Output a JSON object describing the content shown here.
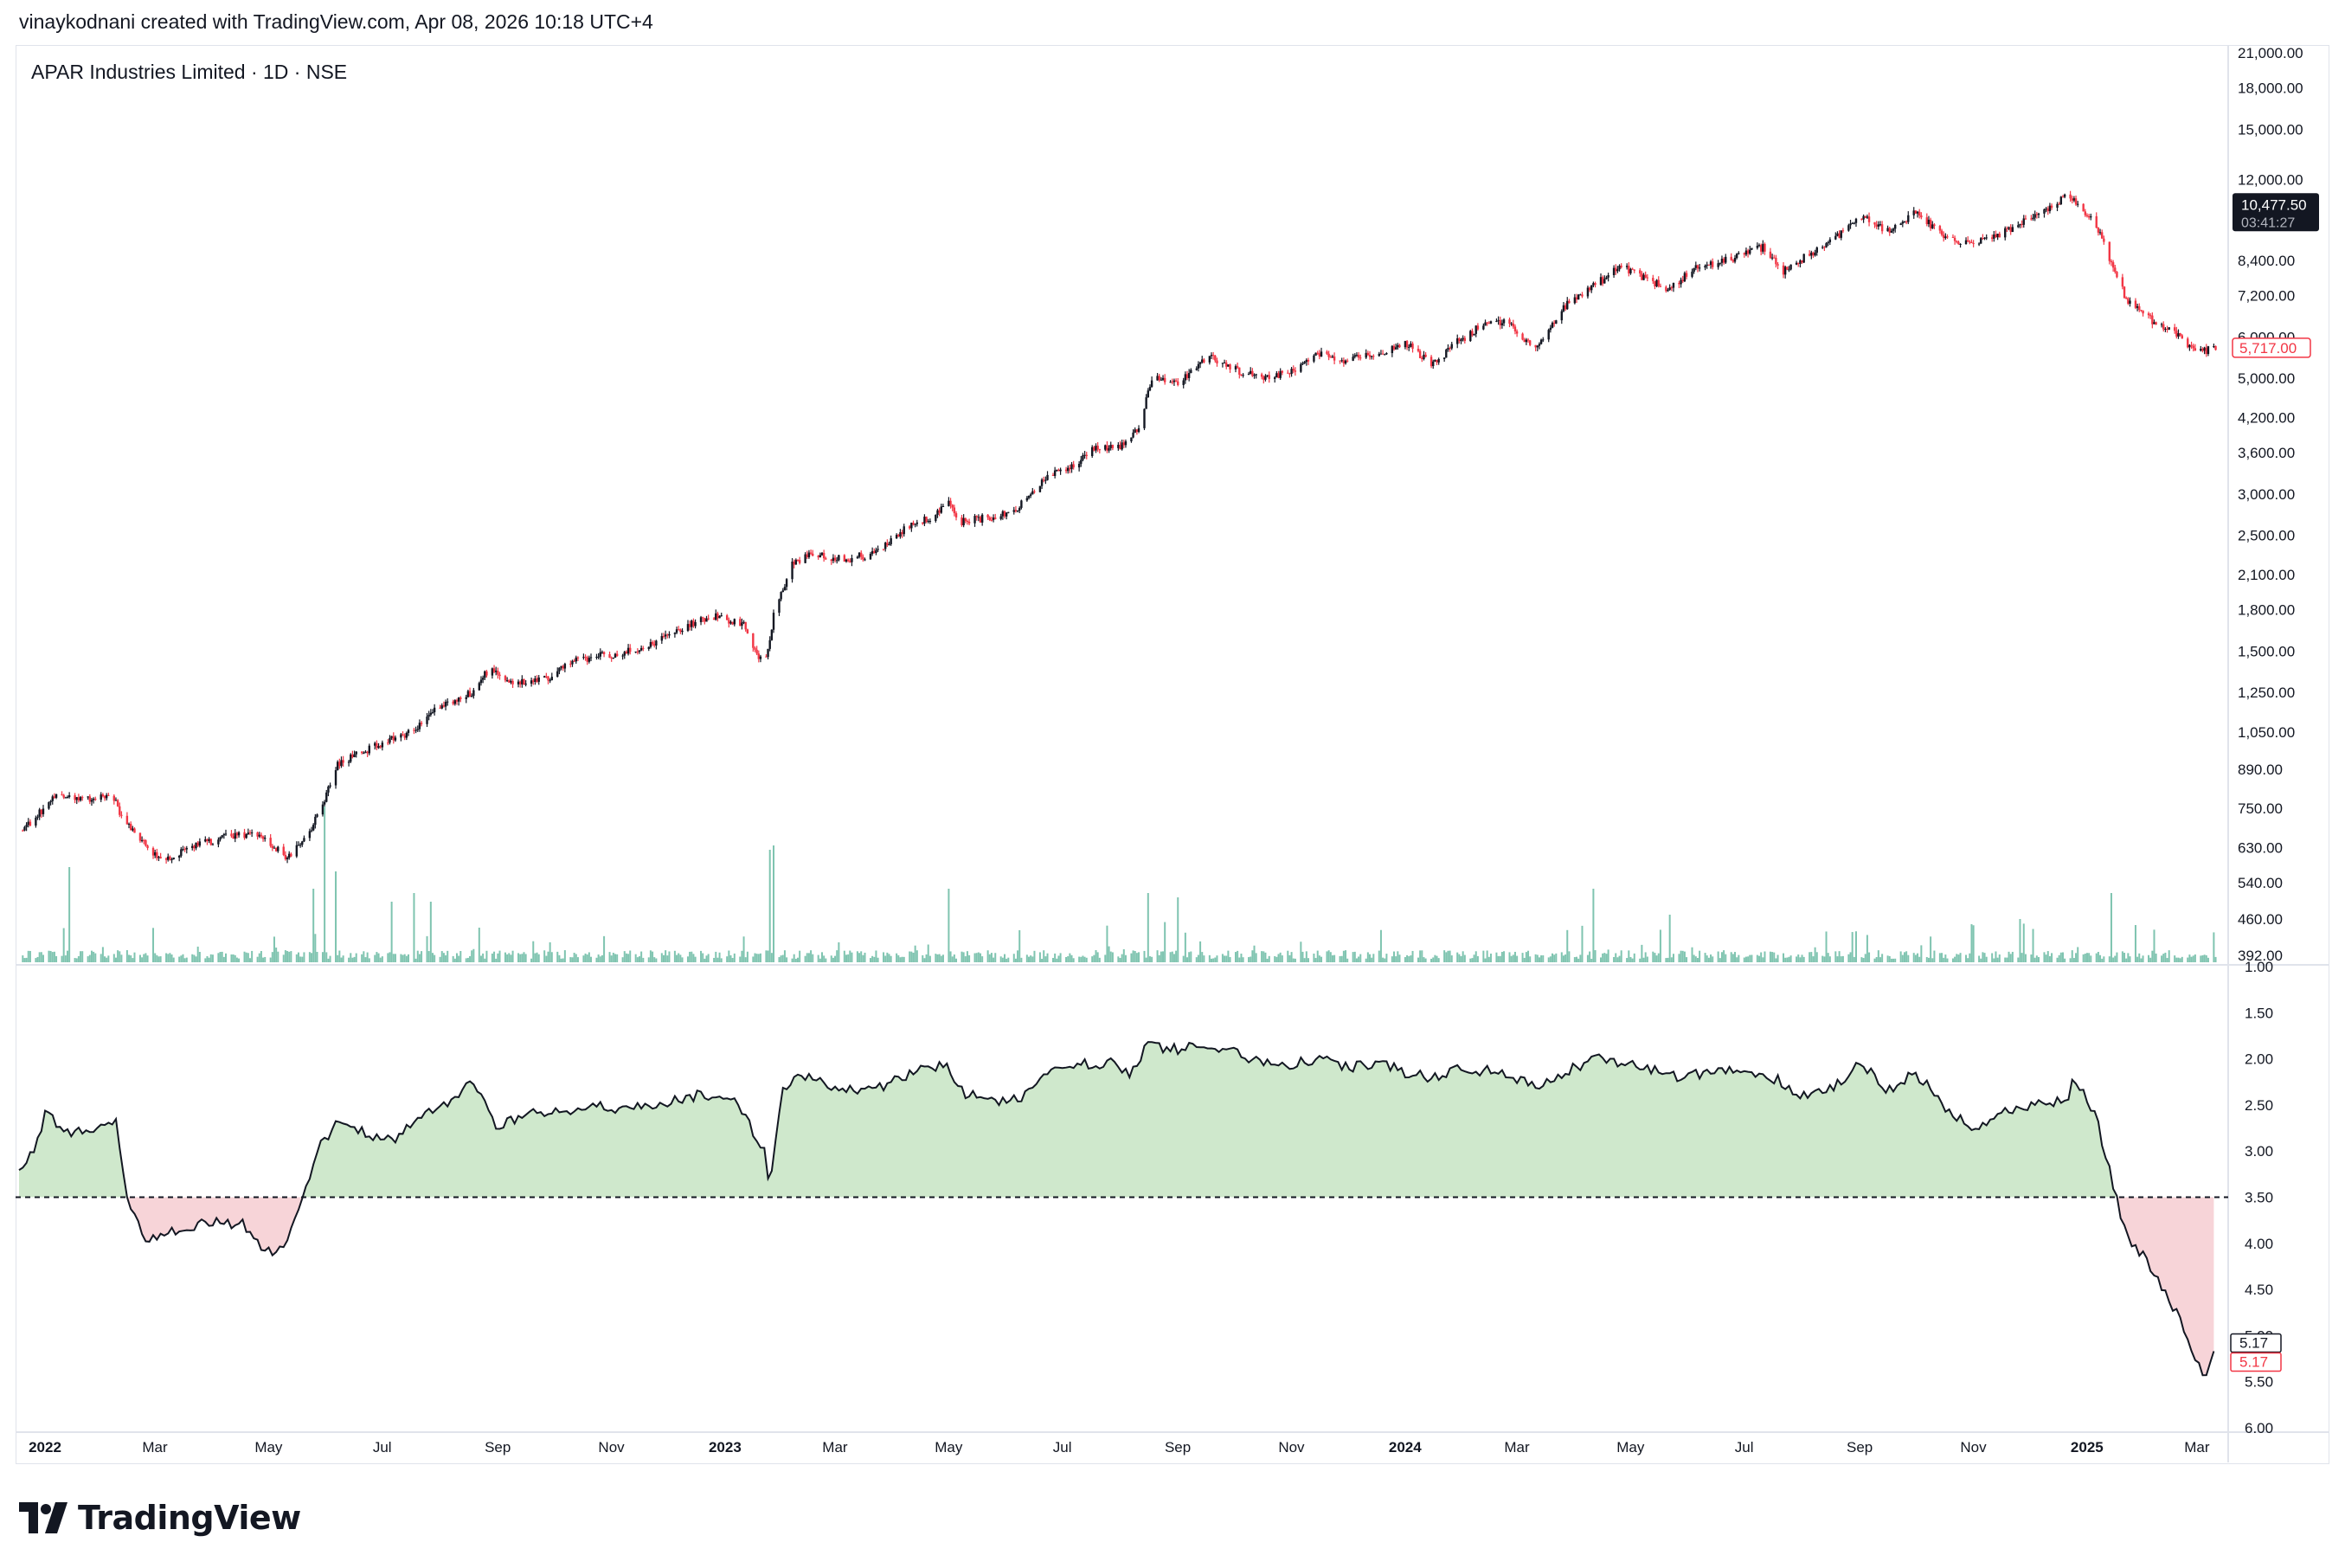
{
  "header": {
    "text": "vinaykodnani created with TradingView.com, Apr 08, 2026 10:18 UTC+4"
  },
  "symbol": {
    "title": "APAR Industries Limited · 1D · NSE"
  },
  "logo": {
    "text": "TradingView"
  },
  "colors": {
    "up": "#131722",
    "down": "#f23645",
    "volume": "#7fc4b0",
    "green_fill": "#cfe8cc",
    "red_fill": "#f7d4d8",
    "line": "#131722",
    "grid": "#e0e3eb"
  },
  "icons": {
    "logo": "tradingview-logo-icon"
  },
  "chart_data": [
    {
      "type": "candlestick",
      "title": "APAR Industries Limited · 1D · NSE",
      "y_scale": "log",
      "ylim": [
        380,
        21500
      ],
      "y_ticks": [
        21000,
        18000,
        15000,
        12000,
        8400,
        7200,
        6000,
        5000,
        4200,
        3600,
        3000,
        2500,
        2100,
        1800,
        1500,
        1250,
        1050,
        890,
        750,
        630,
        540,
        460,
        392
      ],
      "y_tick_labels": [
        "21,000.00",
        "18,000.00",
        "15,000.00",
        "12,000.00",
        "8,400.00",
        "7,200.00",
        "6,000.00",
        "5,000.00",
        "4,200.00",
        "3,600.00",
        "3,000.00",
        "2,500.00",
        "2,100.00",
        "1,800.00",
        "1,500.00",
        "1,250.00",
        "1,050.00",
        "890.00",
        "750.00",
        "630.00",
        "540.00",
        "460.00",
        "392.00"
      ],
      "last_price": {
        "price_label": "10,477.50",
        "countdown": "03:41:27",
        "value": 10477.5
      },
      "current_price": {
        "label": "5,717.00",
        "value": 5717
      },
      "x_ticks": [
        "2022",
        "Mar",
        "May",
        "Jul",
        "Sep",
        "Nov",
        "2023",
        "Mar",
        "May",
        "Jul",
        "Sep",
        "Nov",
        "2024",
        "Mar",
        "May",
        "Jul",
        "Sep",
        "Nov",
        "2025",
        "Mar"
      ],
      "x_bold": [
        "2022",
        "2023",
        "2024",
        "2025"
      ],
      "close_path": [
        [
          "2022-01-01",
          680
        ],
        [
          "2022-01-10",
          720
        ],
        [
          "2022-01-20",
          790
        ],
        [
          "2022-02-05",
          780
        ],
        [
          "2022-02-20",
          800
        ],
        [
          "2022-02-25",
          720
        ],
        [
          "2022-03-10",
          640
        ],
        [
          "2022-03-20",
          590
        ],
        [
          "2022-04-01",
          630
        ],
        [
          "2022-04-15",
          650
        ],
        [
          "2022-05-01",
          670
        ],
        [
          "2022-05-15",
          650
        ],
        [
          "2022-05-25",
          600
        ],
        [
          "2022-06-01",
          640
        ],
        [
          "2022-06-08",
          700
        ],
        [
          "2022-06-15",
          800
        ],
        [
          "2022-06-20",
          900
        ],
        [
          "2022-07-01",
          950
        ],
        [
          "2022-07-15",
          1000
        ],
        [
          "2022-08-01",
          1050
        ],
        [
          "2022-08-15",
          1180
        ],
        [
          "2022-09-01",
          1250
        ],
        [
          "2022-09-10",
          1380
        ],
        [
          "2022-09-25",
          1300
        ],
        [
          "2022-10-10",
          1320
        ],
        [
          "2022-10-25",
          1430
        ],
        [
          "2022-11-10",
          1470
        ],
        [
          "2022-11-25",
          1500
        ],
        [
          "2022-12-10",
          1560
        ],
        [
          "2022-12-25",
          1680
        ],
        [
          "2023-01-10",
          1750
        ],
        [
          "2023-01-25",
          1680
        ],
        [
          "2023-02-05",
          1400
        ],
        [
          "2023-02-10",
          1750
        ],
        [
          "2023-02-20",
          2200
        ],
        [
          "2023-03-01",
          2300
        ],
        [
          "2023-03-20",
          2250
        ],
        [
          "2023-04-05",
          2300
        ],
        [
          "2023-04-20",
          2550
        ],
        [
          "2023-05-05",
          2700
        ],
        [
          "2023-05-15",
          2900
        ],
        [
          "2023-05-20",
          2650
        ],
        [
          "2023-06-05",
          2700
        ],
        [
          "2023-06-20",
          2800
        ],
        [
          "2023-07-05",
          3200
        ],
        [
          "2023-07-20",
          3400
        ],
        [
          "2023-08-01",
          3650
        ],
        [
          "2023-08-15",
          3700
        ],
        [
          "2023-08-25",
          4000
        ],
        [
          "2023-09-01",
          5000
        ],
        [
          "2023-09-15",
          4900
        ],
        [
          "2023-10-01",
          5500
        ],
        [
          "2023-10-15",
          5200
        ],
        [
          "2023-10-30",
          5000
        ],
        [
          "2023-11-15",
          5150
        ],
        [
          "2023-12-01",
          5600
        ],
        [
          "2023-12-15",
          5400
        ],
        [
          "2024-01-01",
          5600
        ],
        [
          "2024-01-15",
          5850
        ],
        [
          "2024-01-30",
          5300
        ],
        [
          "2024-02-10",
          5800
        ],
        [
          "2024-02-25",
          6300
        ],
        [
          "2024-03-10",
          6400
        ],
        [
          "2024-03-25",
          5700
        ],
        [
          "2024-04-10",
          6900
        ],
        [
          "2024-04-25",
          7500
        ],
        [
          "2024-05-10",
          8200
        ],
        [
          "2024-05-25",
          7700
        ],
        [
          "2024-06-05",
          7400
        ],
        [
          "2024-06-20",
          8200
        ],
        [
          "2024-07-05",
          8400
        ],
        [
          "2024-07-25",
          8900
        ],
        [
          "2024-08-05",
          8000
        ],
        [
          "2024-08-20",
          8700
        ],
        [
          "2024-09-01",
          9200
        ],
        [
          "2024-09-15",
          10300
        ],
        [
          "2024-10-01",
          9500
        ],
        [
          "2024-10-15",
          10500
        ],
        [
          "2024-10-30",
          9300
        ],
        [
          "2024-11-15",
          9000
        ],
        [
          "2024-12-01",
          9500
        ],
        [
          "2024-12-20",
          10300
        ],
        [
          "2025-01-05",
          11200
        ],
        [
          "2025-01-20",
          9800
        ],
        [
          "2025-01-28",
          8300
        ],
        [
          "2025-02-05",
          7100
        ],
        [
          "2025-02-20",
          6400
        ],
        [
          "2025-03-05",
          6000
        ],
        [
          "2025-03-15",
          5600
        ],
        [
          "2025-03-25",
          5717
        ]
      ]
    },
    {
      "type": "area",
      "y_scale": "inverted",
      "ylim": [
        1.0,
        6.0
      ],
      "baseline": 3.5,
      "y_ticks": [
        1.0,
        1.5,
        2.0,
        2.5,
        3.0,
        3.5,
        4.0,
        4.5,
        5.0,
        5.5,
        6.0
      ],
      "y_tick_labels": [
        "1.00",
        "1.50",
        "2.00",
        "2.50",
        "3.00",
        "3.50",
        "4.00",
        "4.50",
        "5.00",
        "5.50",
        "6.00"
      ],
      "current_labels": [
        "5.17",
        "5.17"
      ],
      "current_value": 5.17,
      "line_path": [
        [
          "2022-01-01",
          3.2
        ],
        [
          "2022-01-10",
          3.0
        ],
        [
          "2022-01-15",
          2.55
        ],
        [
          "2022-01-25",
          2.8
        ],
        [
          "2022-02-10",
          2.75
        ],
        [
          "2022-02-22",
          2.7
        ],
        [
          "2022-02-28",
          3.5
        ],
        [
          "2022-03-10",
          4.0
        ],
        [
          "2022-03-20",
          3.9
        ],
        [
          "2022-04-01",
          3.85
        ],
        [
          "2022-04-15",
          3.75
        ],
        [
          "2022-05-01",
          3.8
        ],
        [
          "2022-05-15",
          4.1
        ],
        [
          "2022-05-25",
          4.0
        ],
        [
          "2022-06-01",
          3.55
        ],
        [
          "2022-06-10",
          3.0
        ],
        [
          "2022-06-20",
          2.7
        ],
        [
          "2022-07-05",
          2.8
        ],
        [
          "2022-07-20",
          2.9
        ],
        [
          "2022-08-05",
          2.6
        ],
        [
          "2022-08-20",
          2.5
        ],
        [
          "2022-09-01",
          2.25
        ],
        [
          "2022-09-15",
          2.75
        ],
        [
          "2022-10-01",
          2.6
        ],
        [
          "2022-10-15",
          2.6
        ],
        [
          "2022-11-01",
          2.5
        ],
        [
          "2022-11-20",
          2.55
        ],
        [
          "2022-12-10",
          2.5
        ],
        [
          "2022-12-30",
          2.4
        ],
        [
          "2023-01-20",
          2.45
        ],
        [
          "2023-02-05",
          3.0
        ],
        [
          "2023-02-08",
          3.4
        ],
        [
          "2023-02-15",
          2.3
        ],
        [
          "2023-03-01",
          2.15
        ],
        [
          "2023-03-15",
          2.3
        ],
        [
          "2023-04-05",
          2.35
        ],
        [
          "2023-04-20",
          2.2
        ],
        [
          "2023-05-05",
          2.1
        ],
        [
          "2023-05-15",
          2.05
        ],
        [
          "2023-05-20",
          2.35
        ],
        [
          "2023-06-10",
          2.45
        ],
        [
          "2023-06-25",
          2.4
        ],
        [
          "2023-07-10",
          2.1
        ],
        [
          "2023-07-25",
          2.05
        ],
        [
          "2023-08-10",
          2.05
        ],
        [
          "2023-08-20",
          2.15
        ],
        [
          "2023-08-30",
          1.85
        ],
        [
          "2023-09-15",
          1.9
        ],
        [
          "2023-10-01",
          1.85
        ],
        [
          "2023-10-15",
          1.9
        ],
        [
          "2023-10-30",
          2.05
        ],
        [
          "2023-11-15",
          2.05
        ],
        [
          "2023-12-01",
          2.0
        ],
        [
          "2023-12-15",
          2.1
        ],
        [
          "2024-01-01",
          2.05
        ],
        [
          "2024-01-15",
          2.15
        ],
        [
          "2024-01-30",
          2.2
        ],
        [
          "2024-02-15",
          2.1
        ],
        [
          "2024-03-05",
          2.15
        ],
        [
          "2024-03-25",
          2.3
        ],
        [
          "2024-04-10",
          2.15
        ],
        [
          "2024-04-25",
          2.0
        ],
        [
          "2024-05-10",
          2.05
        ],
        [
          "2024-05-25",
          2.1
        ],
        [
          "2024-06-10",
          2.2
        ],
        [
          "2024-06-25",
          2.15
        ],
        [
          "2024-07-15",
          2.1
        ],
        [
          "2024-07-30",
          2.2
        ],
        [
          "2024-08-15",
          2.4
        ],
        [
          "2024-09-01",
          2.3
        ],
        [
          "2024-09-15",
          2.05
        ],
        [
          "2024-10-01",
          2.35
        ],
        [
          "2024-10-15",
          2.15
        ],
        [
          "2024-10-30",
          2.5
        ],
        [
          "2024-11-15",
          2.8
        ],
        [
          "2024-12-01",
          2.55
        ],
        [
          "2024-12-20",
          2.5
        ],
        [
          "2025-01-05",
          2.45
        ],
        [
          "2025-01-08",
          2.2
        ],
        [
          "2025-01-20",
          2.65
        ],
        [
          "2025-01-28",
          3.3
        ],
        [
          "2025-02-05",
          3.9
        ],
        [
          "2025-02-20",
          4.3
        ],
        [
          "2025-03-05",
          4.8
        ],
        [
          "2025-03-10",
          5.1
        ],
        [
          "2025-03-15",
          5.3
        ],
        [
          "2025-03-20",
          5.45
        ],
        [
          "2025-03-25",
          5.17
        ]
      ]
    }
  ]
}
